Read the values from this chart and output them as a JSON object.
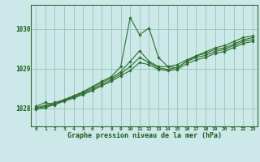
{
  "background_color": "#cce8e8",
  "grid_color": "#99ccbb",
  "line_color": "#2d6e2d",
  "marker_color": "#2d6e2d",
  "xlabel": "Graphe pression niveau de la mer (hPa)",
  "xlim": [
    -0.5,
    23.5
  ],
  "ylim": [
    1027.55,
    1030.6
  ],
  "yticks": [
    1028,
    1029,
    1030
  ],
  "xticks": [
    0,
    1,
    2,
    3,
    4,
    5,
    6,
    7,
    8,
    9,
    10,
    11,
    12,
    13,
    14,
    15,
    16,
    17,
    18,
    19,
    20,
    21,
    22,
    23
  ],
  "series": [
    [
      1028.05,
      1028.15,
      1028.08,
      1028.22,
      1028.32,
      1028.42,
      1028.55,
      1028.68,
      1028.8,
      1029.05,
      1030.28,
      1029.85,
      1030.02,
      1029.28,
      1029.05,
      1029.02,
      1029.18,
      1029.32,
      1029.42,
      1029.52,
      1029.58,
      1029.68,
      1029.78,
      1029.82
    ],
    [
      1028.02,
      1028.08,
      1028.15,
      1028.22,
      1028.3,
      1028.4,
      1028.52,
      1028.65,
      1028.76,
      1028.92,
      1029.18,
      1029.45,
      1029.18,
      1029.05,
      1029.05,
      1029.1,
      1029.22,
      1029.32,
      1029.38,
      1029.48,
      1029.52,
      1029.62,
      1029.72,
      1029.78
    ],
    [
      1028.0,
      1028.05,
      1028.12,
      1028.2,
      1028.28,
      1028.37,
      1028.48,
      1028.6,
      1028.72,
      1028.87,
      1029.05,
      1029.28,
      1029.15,
      1029.02,
      1028.98,
      1029.03,
      1029.18,
      1029.28,
      1029.33,
      1029.43,
      1029.48,
      1029.58,
      1029.68,
      1029.73
    ],
    [
      1027.98,
      1028.02,
      1028.1,
      1028.18,
      1028.26,
      1028.35,
      1028.45,
      1028.57,
      1028.68,
      1028.82,
      1028.95,
      1029.15,
      1029.1,
      1028.98,
      1028.95,
      1028.98,
      1029.12,
      1029.22,
      1029.28,
      1029.38,
      1029.43,
      1029.53,
      1029.63,
      1029.68
    ]
  ]
}
